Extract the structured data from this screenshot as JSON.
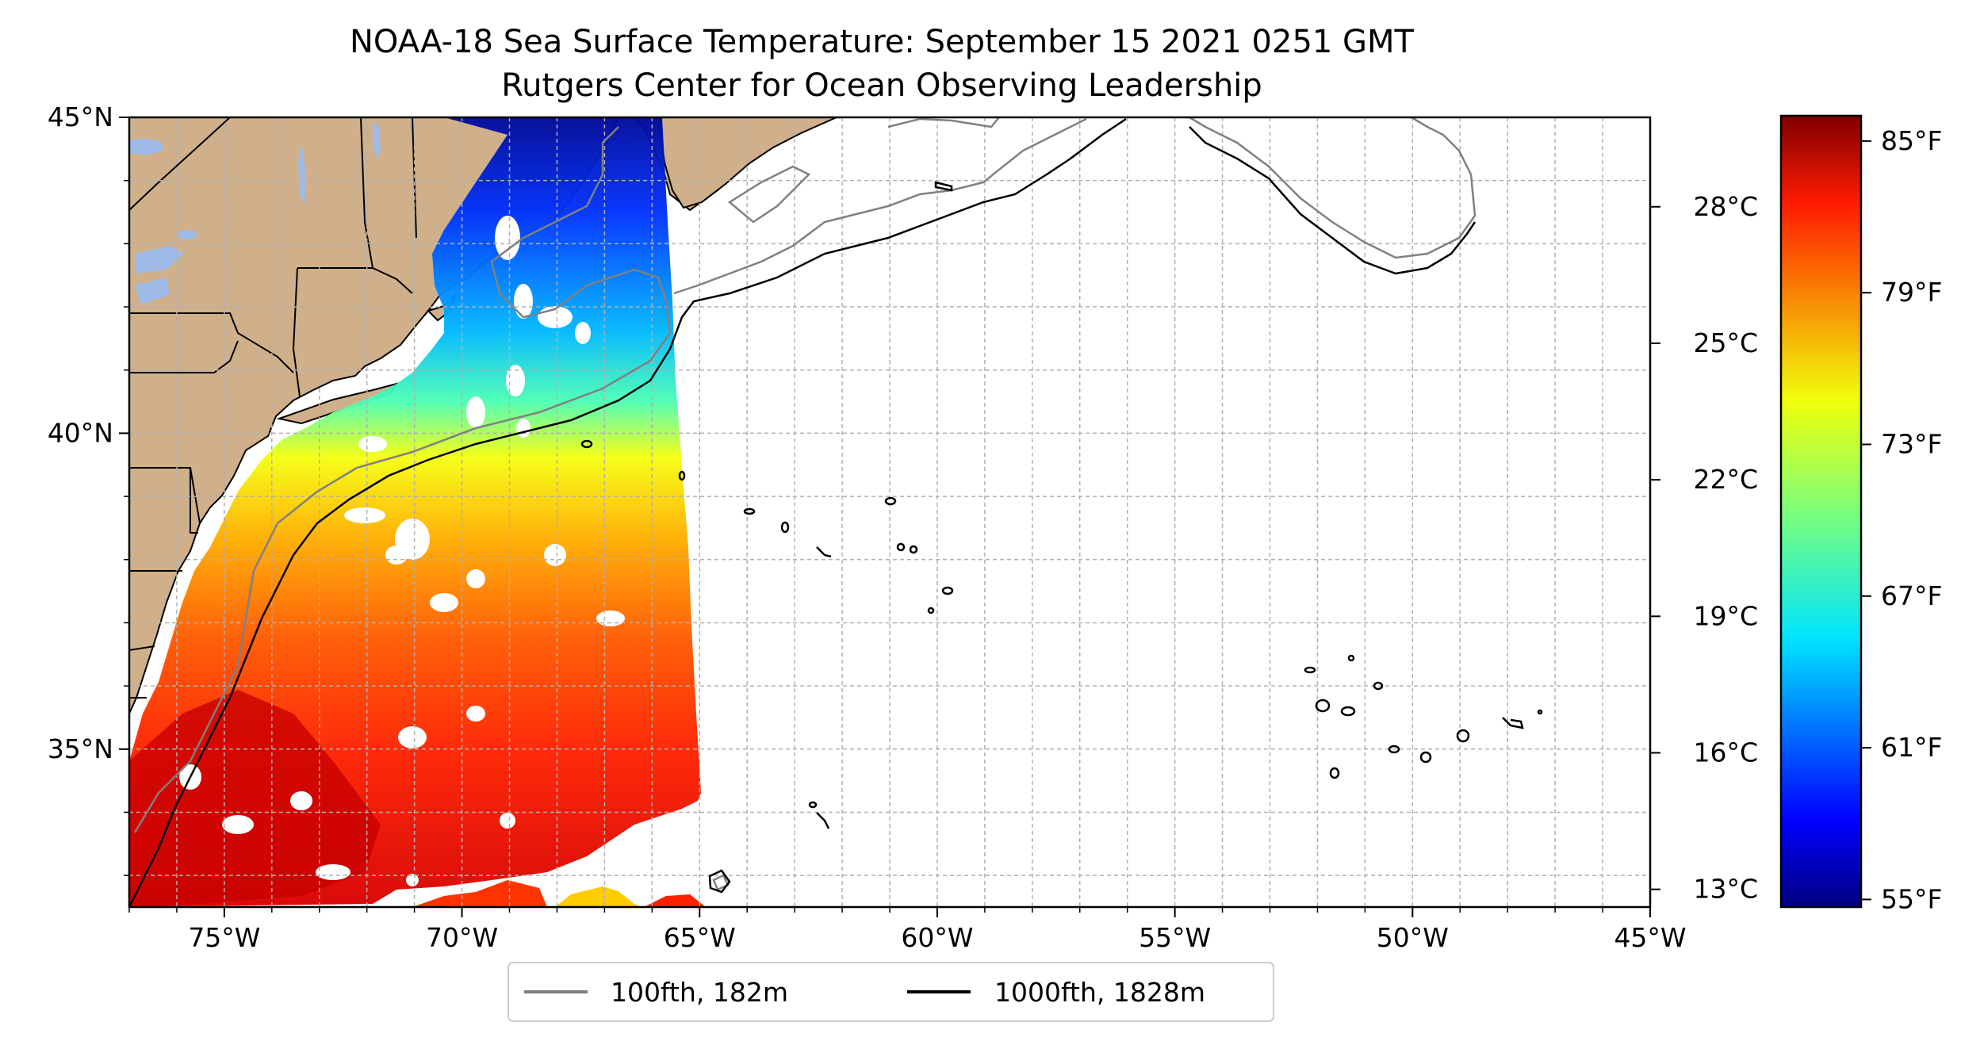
{
  "figure": {
    "title": "NOAA-18 Sea Surface Temperature: September 15 2021 0251 GMT",
    "subtitle": "Rutgers Center for Ocean Observing Leadership"
  },
  "map": {
    "lon_range": [
      -77,
      -45
    ],
    "lat_range": [
      32.5,
      45
    ],
    "lon_ticks": [
      {
        "value": -75,
        "label": "75°W"
      },
      {
        "value": -70,
        "label": "70°W"
      },
      {
        "value": -65,
        "label": "65°W"
      },
      {
        "value": -60,
        "label": "60°W"
      },
      {
        "value": -55,
        "label": "55°W"
      },
      {
        "value": -50,
        "label": "50°W"
      },
      {
        "value": -45,
        "label": "45°W"
      }
    ],
    "lat_ticks": [
      {
        "value": 45,
        "label": "45°N"
      },
      {
        "value": 40,
        "label": "40°N"
      },
      {
        "value": 35,
        "label": "35°N"
      }
    ],
    "grid": true,
    "colors": {
      "land": "#cfb08a",
      "lakes": "#9ebbe8",
      "ocean": "#ffffff",
      "isobath_100fth": "#808080",
      "isobath_1000fth": "#000000"
    }
  },
  "legend": {
    "placement": "bottom-center",
    "entries": [
      {
        "label": "100fth, 182m",
        "color": "#808080"
      },
      {
        "label": "1000fth, 1828m",
        "color": "#000000"
      }
    ]
  },
  "colorbar": {
    "colormap": "jet",
    "range_f": [
      54.7,
      86.0
    ],
    "celsius_ticks": [
      {
        "value": 13,
        "label": "13°C"
      },
      {
        "value": 16,
        "label": "16°C"
      },
      {
        "value": 19,
        "label": "19°C"
      },
      {
        "value": 22,
        "label": "22°C"
      },
      {
        "value": 25,
        "label": "25°C"
      },
      {
        "value": 28,
        "label": "28°C"
      }
    ],
    "fahrenheit_ticks": [
      {
        "value": 55,
        "label": "55°F"
      },
      {
        "value": 61,
        "label": "61°F"
      },
      {
        "value": 67,
        "label": "67°F"
      },
      {
        "value": 73,
        "label": "73°F"
      },
      {
        "value": 79,
        "label": "79°F"
      },
      {
        "value": 85,
        "label": "85°F"
      }
    ]
  }
}
